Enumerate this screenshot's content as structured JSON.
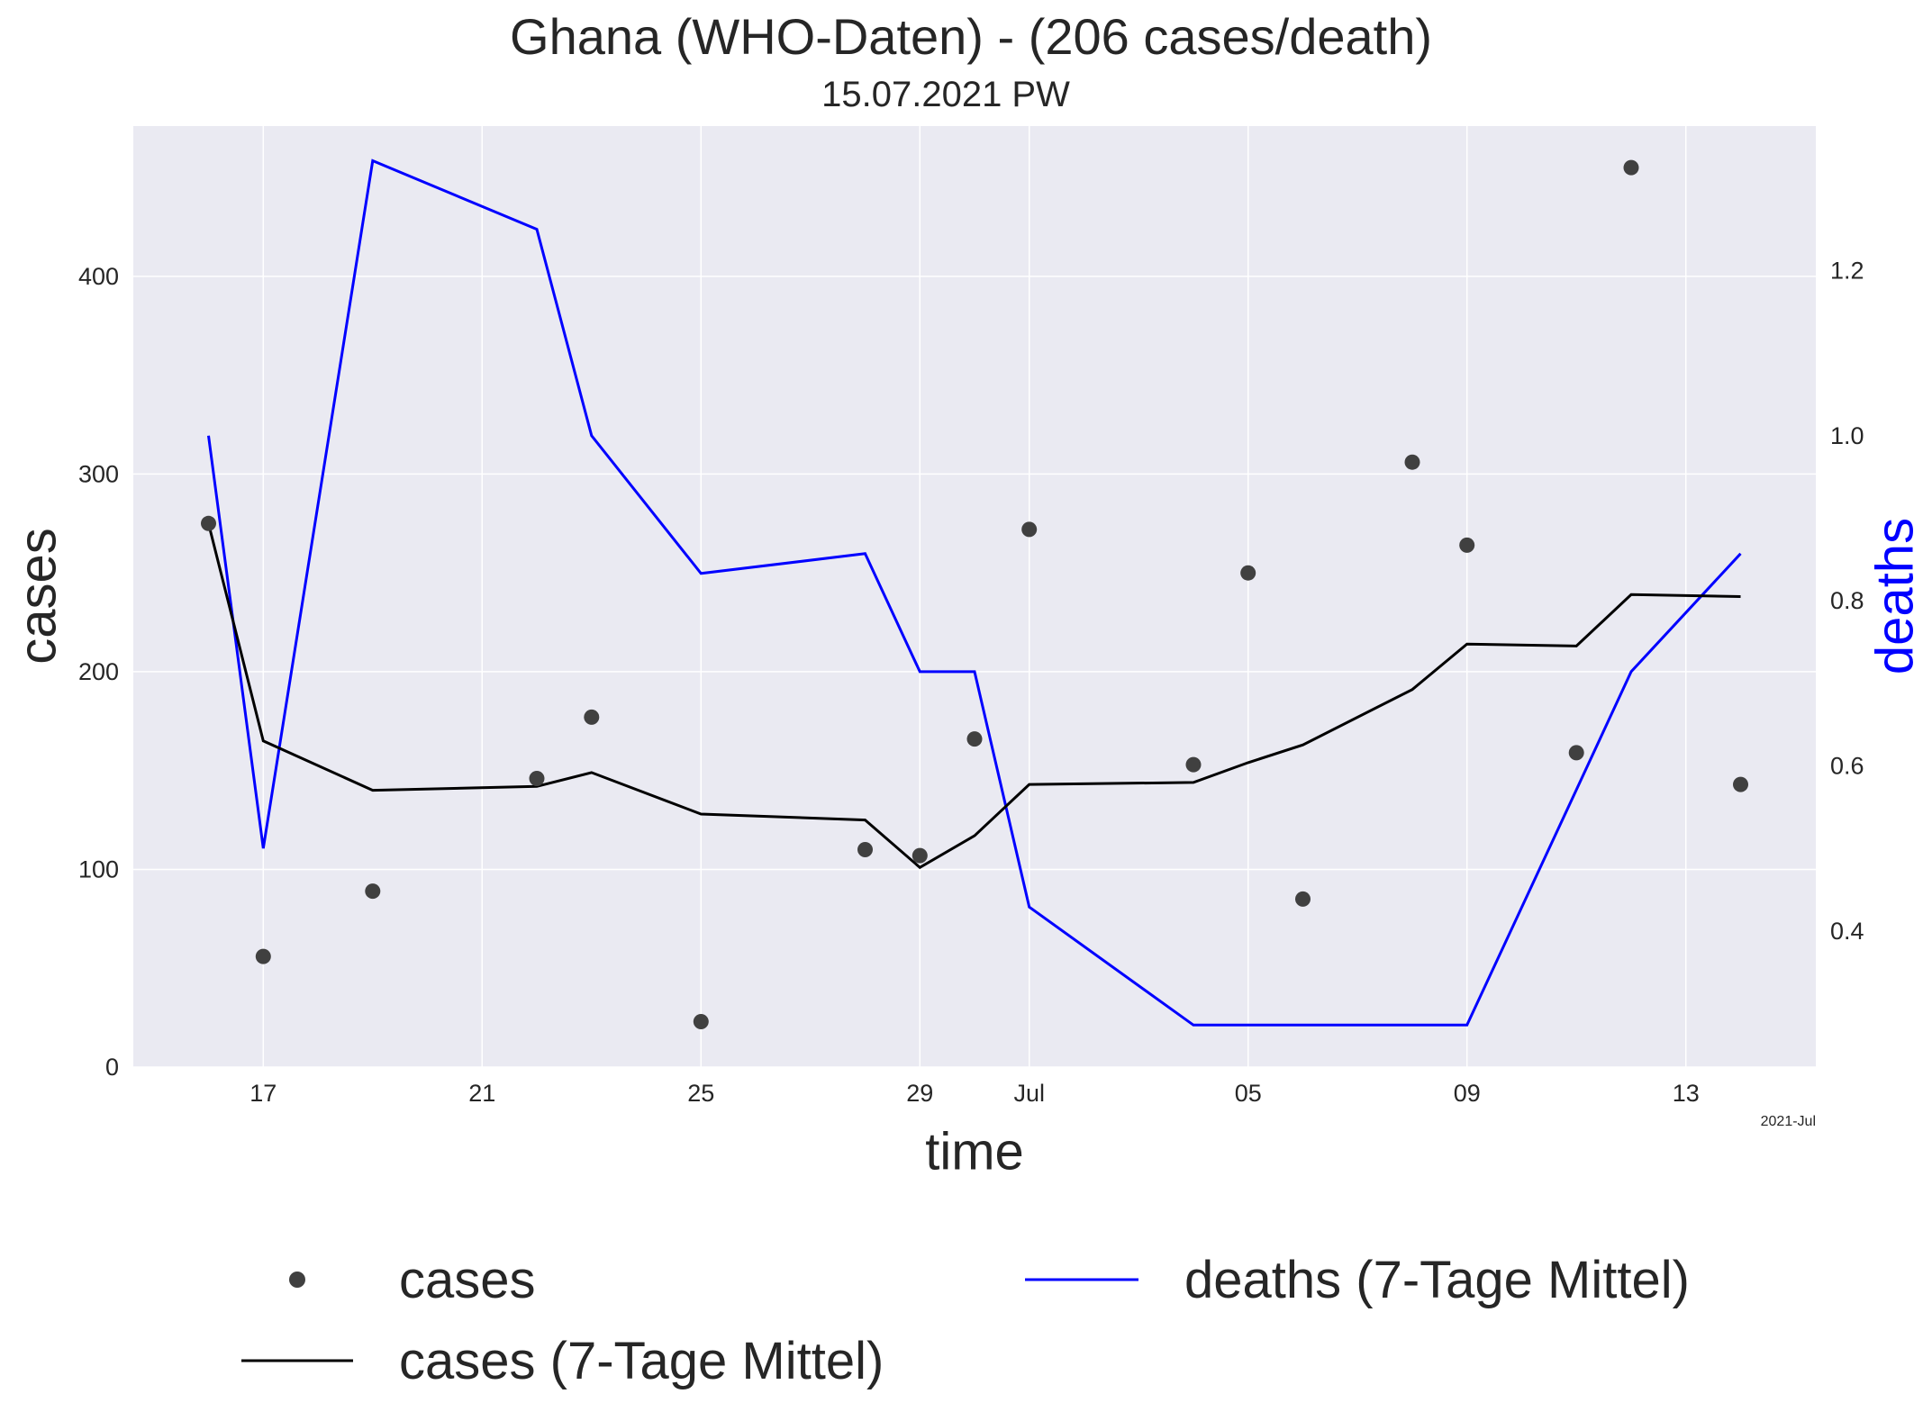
{
  "chart_data": {
    "type": "line",
    "title": "Ghana (WHO-Daten) - (206 cases/death)",
    "subtitle": "15.07.2021 PW",
    "xlabel": "time",
    "ylabel": "cases",
    "ylabel_right": "deaths",
    "x_offset_label": "2021-Jul",
    "xlim": [
      "2021-06-14T15:00",
      "2021-07-15T09:00"
    ],
    "ylim": [
      0,
      476
    ],
    "ylim_right": [
      0.235,
      1.375
    ],
    "x_ticks": [
      {
        "date": "2021-06-17",
        "label": "17"
      },
      {
        "date": "2021-06-21",
        "label": "21"
      },
      {
        "date": "2021-06-25",
        "label": "25"
      },
      {
        "date": "2021-06-29",
        "label": "29"
      },
      {
        "date": "2021-07-01",
        "label": "Jul"
      },
      {
        "date": "2021-07-05",
        "label": "05"
      },
      {
        "date": "2021-07-09",
        "label": "09"
      },
      {
        "date": "2021-07-13",
        "label": "13"
      }
    ],
    "y_ticks": [
      0,
      100,
      200,
      300,
      400
    ],
    "y_ticks_right": [
      0.4,
      0.6,
      0.8,
      1.0,
      1.2
    ],
    "grid": true,
    "legend_position": "bottom",
    "series": [
      {
        "name": "cases",
        "kind": "scatter",
        "axis": "left",
        "color": "#404040",
        "points": [
          {
            "x": "2021-06-16",
            "y": 275
          },
          {
            "x": "2021-06-17",
            "y": 56
          },
          {
            "x": "2021-06-19",
            "y": 89
          },
          {
            "x": "2021-06-22",
            "y": 146
          },
          {
            "x": "2021-06-23",
            "y": 177
          },
          {
            "x": "2021-06-25",
            "y": 23
          },
          {
            "x": "2021-06-28",
            "y": 110
          },
          {
            "x": "2021-06-29",
            "y": 107
          },
          {
            "x": "2021-06-30",
            "y": 166
          },
          {
            "x": "2021-07-01",
            "y": 272
          },
          {
            "x": "2021-07-04",
            "y": 153
          },
          {
            "x": "2021-07-05",
            "y": 250
          },
          {
            "x": "2021-07-06",
            "y": 85
          },
          {
            "x": "2021-07-08",
            "y": 306
          },
          {
            "x": "2021-07-09",
            "y": 264
          },
          {
            "x": "2021-07-11",
            "y": 159
          },
          {
            "x": "2021-07-12",
            "y": 455
          },
          {
            "x": "2021-07-14",
            "y": 143
          }
        ]
      },
      {
        "name": "cases (7-Tage Mittel)",
        "kind": "line",
        "axis": "left",
        "color": "#000000",
        "points": [
          {
            "x": "2021-06-16",
            "y": 275
          },
          {
            "x": "2021-06-17",
            "y": 165
          },
          {
            "x": "2021-06-19",
            "y": 140
          },
          {
            "x": "2021-06-22",
            "y": 142
          },
          {
            "x": "2021-06-23",
            "y": 149
          },
          {
            "x": "2021-06-25",
            "y": 128
          },
          {
            "x": "2021-06-28",
            "y": 125
          },
          {
            "x": "2021-06-29",
            "y": 101
          },
          {
            "x": "2021-06-30",
            "y": 117
          },
          {
            "x": "2021-07-01",
            "y": 143
          },
          {
            "x": "2021-07-04",
            "y": 144
          },
          {
            "x": "2021-07-05",
            "y": 154
          },
          {
            "x": "2021-07-06",
            "y": 163
          },
          {
            "x": "2021-07-08",
            "y": 191
          },
          {
            "x": "2021-07-09",
            "y": 214
          },
          {
            "x": "2021-07-11",
            "y": 213
          },
          {
            "x": "2021-07-12",
            "y": 239
          },
          {
            "x": "2021-07-14",
            "y": 238
          }
        ]
      },
      {
        "name": "deaths (7-Tage Mittel)",
        "kind": "line",
        "axis": "right",
        "color": "#0000ff",
        "points": [
          {
            "x": "2021-06-16",
            "y": 1.0
          },
          {
            "x": "2021-06-17",
            "y": 0.5
          },
          {
            "x": "2021-06-19",
            "y": 1.333
          },
          {
            "x": "2021-06-22",
            "y": 1.25
          },
          {
            "x": "2021-06-23",
            "y": 1.0
          },
          {
            "x": "2021-06-25",
            "y": 0.833
          },
          {
            "x": "2021-06-28",
            "y": 0.857
          },
          {
            "x": "2021-06-29",
            "y": 0.714
          },
          {
            "x": "2021-06-30",
            "y": 0.714
          },
          {
            "x": "2021-07-01",
            "y": 0.429
          },
          {
            "x": "2021-07-04",
            "y": 0.286
          },
          {
            "x": "2021-07-05",
            "y": 0.286
          },
          {
            "x": "2021-07-06",
            "y": 0.286
          },
          {
            "x": "2021-07-08",
            "y": 0.286
          },
          {
            "x": "2021-07-09",
            "y": 0.286
          },
          {
            "x": "2021-07-11",
            "y": 0.571
          },
          {
            "x": "2021-07-12",
            "y": 0.714
          },
          {
            "x": "2021-07-14",
            "y": 0.857
          }
        ]
      }
    ]
  }
}
